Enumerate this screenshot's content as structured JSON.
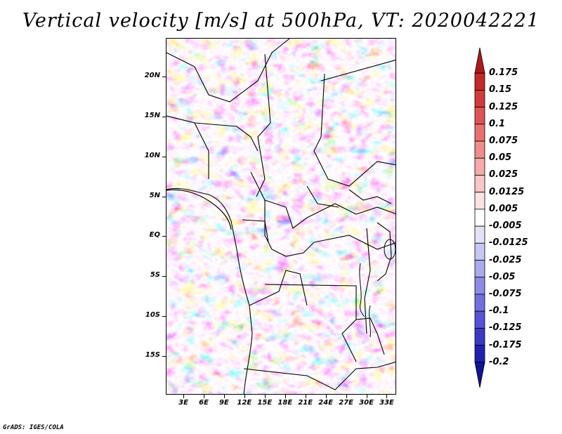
{
  "title": "Vertical velocity [m/s] at 500hPa, VT: 2020042221",
  "footer": "GrADS: IGES/COLA",
  "map": {
    "lat_labels": [
      "20N",
      "15N",
      "10N",
      "5N",
      "EQ",
      "5S",
      "10S",
      "15S"
    ],
    "lat_values": [
      20,
      15,
      10,
      5,
      0,
      -5,
      -10,
      -15
    ],
    "lon_labels": [
      "3E",
      "6E",
      "9E",
      "12E",
      "15E",
      "18E",
      "21E",
      "24E",
      "27E",
      "30E",
      "33E"
    ],
    "lon_values": [
      3,
      6,
      9,
      12,
      15,
      18,
      21,
      24,
      27,
      30,
      33
    ],
    "lon_range": [
      0.4,
      34.4
    ],
    "lat_range": [
      -19.8,
      24.8
    ]
  },
  "colorbar": {
    "labels": [
      "0.175",
      "0.15",
      "0.125",
      "0.1",
      "0.075",
      "0.05",
      "0.025",
      "0.0125",
      "0.005",
      "-0.005",
      "-0.0125",
      "-0.025",
      "-0.05",
      "-0.075",
      "-0.1",
      "-0.125",
      "-0.175",
      "-0.2"
    ],
    "colors": [
      "#b01818",
      "#c42828",
      "#d23a3a",
      "#de5454",
      "#e87070",
      "#f08c8c",
      "#f6aaaa",
      "#fac6c6",
      "#fde2e2",
      "#ffffff",
      "#e2e2f8",
      "#c6c6f2",
      "#aaaaee",
      "#8c8ce8",
      "#7070e0",
      "#5454d4",
      "#3a3ac4",
      "#2020b0",
      "#12129a"
    ]
  }
}
